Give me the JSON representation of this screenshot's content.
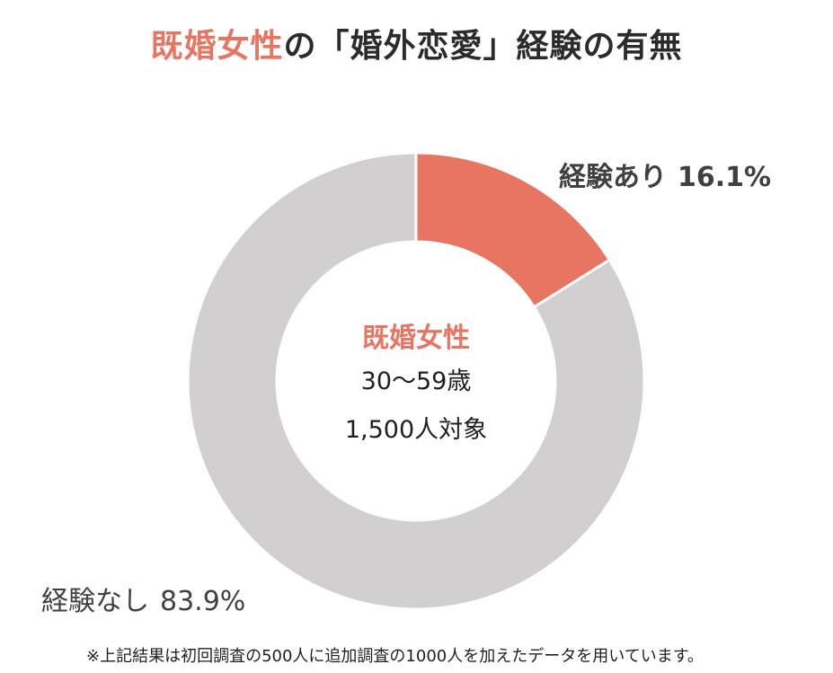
{
  "title": {
    "highlight": "既婚女性",
    "rest": "の「婚外恋愛」経験の有無"
  },
  "colors": {
    "accent": "#e87562",
    "no_experience": "#d1cfd0"
  },
  "center_text": {
    "title": "既婚女性",
    "age": "30〜59歳",
    "sample": "1,500人対象"
  },
  "labels": {
    "yes": {
      "name": "経験あり",
      "pct": "16.1%"
    },
    "no": {
      "name": "経験なし",
      "pct": "83.9%"
    }
  },
  "footnote": "※上記結果は初回調査の500人に追加調査の1000人を加えたデータを用いています。",
  "chart_data": {
    "type": "pie",
    "donut": true,
    "start": "12 o'clock",
    "direction": "clockwise",
    "slices": [
      {
        "name": "経験あり",
        "value": 16.1,
        "color": "#e87562"
      },
      {
        "name": "経験なし",
        "value": 83.9,
        "color": "#d1cfd0"
      }
    ]
  }
}
